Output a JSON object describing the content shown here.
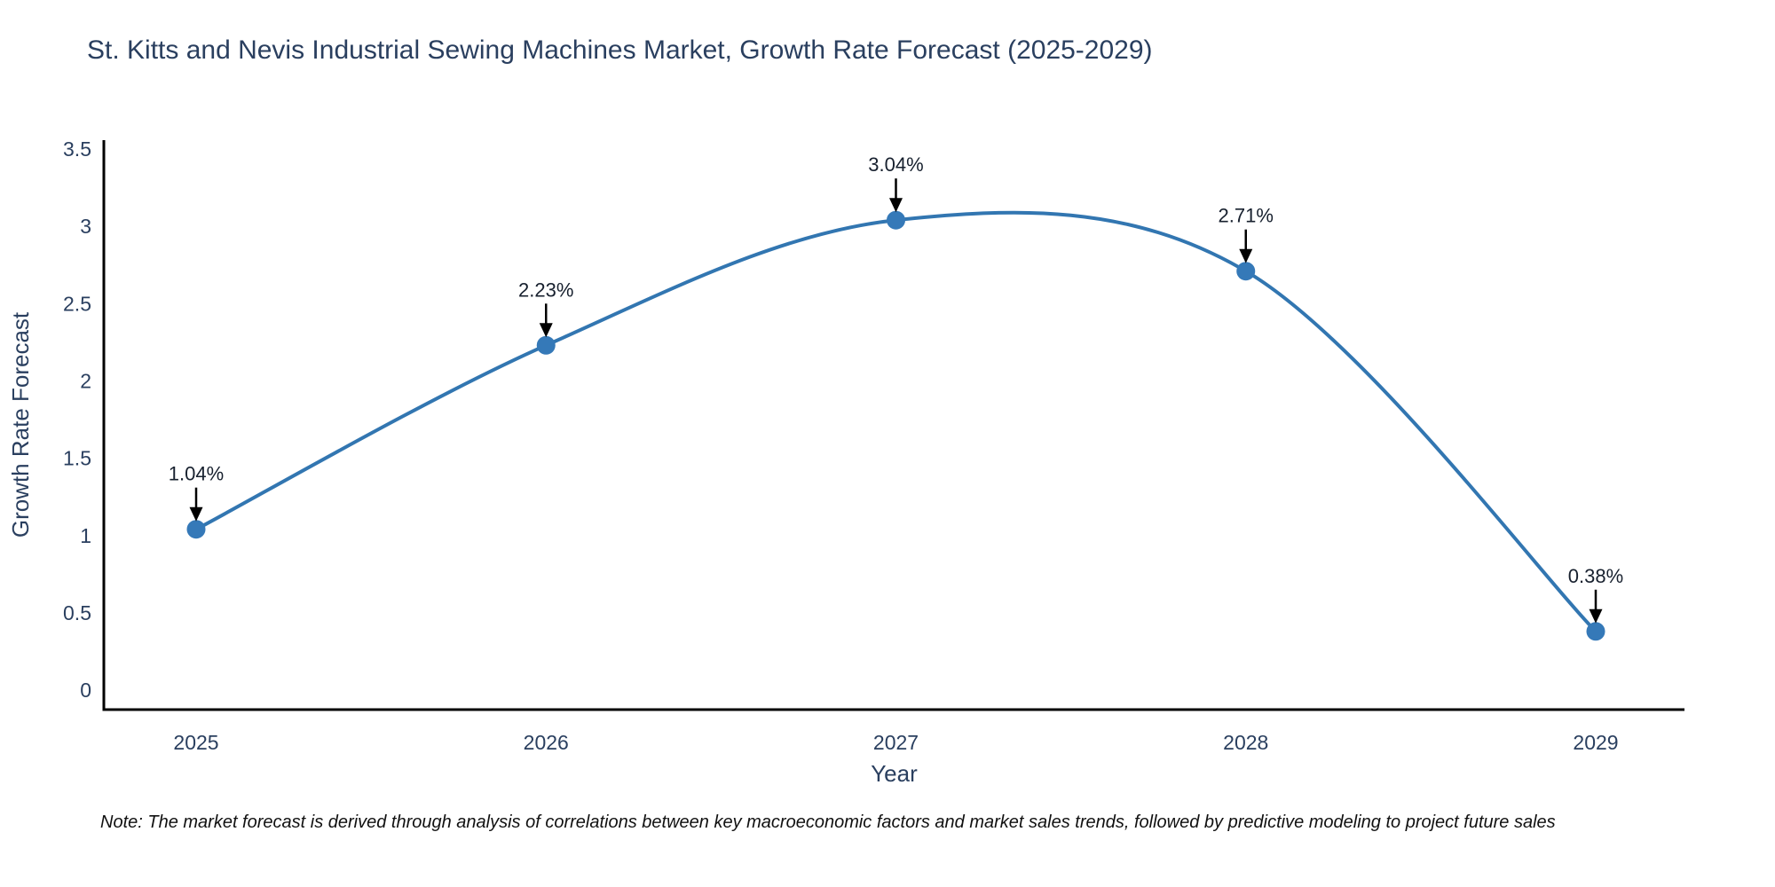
{
  "title": "St. Kitts and Nevis Industrial Sewing Machines Market, Growth Rate Forecast (2025-2029)",
  "note": "Note: The market forecast is derived through analysis of correlations between key macroeconomic factors and market sales trends, followed by predictive modeling to project future sales",
  "chart_data": {
    "type": "line",
    "line_shape": "spline",
    "title": "St. Kitts and Nevis Industrial Sewing Machines Market, Growth Rate Forecast (2025-2029)",
    "xlabel": "Year",
    "ylabel": "Growth Rate Forecast",
    "categories": [
      "2025",
      "2026",
      "2027",
      "2028",
      "2029"
    ],
    "values": [
      1.04,
      2.23,
      3.04,
      2.71,
      0.38
    ],
    "point_labels": [
      "1.04%",
      "2.23%",
      "3.04%",
      "2.71%",
      "0.38%"
    ],
    "ylim": [
      0,
      3.5
    ],
    "yticks": [
      0,
      0.5,
      1,
      1.5,
      2,
      2.5,
      3,
      3.5
    ],
    "ytick_labels": [
      "0",
      "0.5",
      "1",
      "1.5",
      "2",
      "2.5",
      "3",
      "3.5"
    ],
    "grid": false,
    "legend": false,
    "annotations_arrow": true,
    "colors": {
      "line": "#3276b1",
      "marker": "#3579b8",
      "axis_line": "#000000",
      "tick_text": "#2a3f5f",
      "annotation_text": "#17202e",
      "arrow": "#000000",
      "background": "#ffffff"
    }
  }
}
